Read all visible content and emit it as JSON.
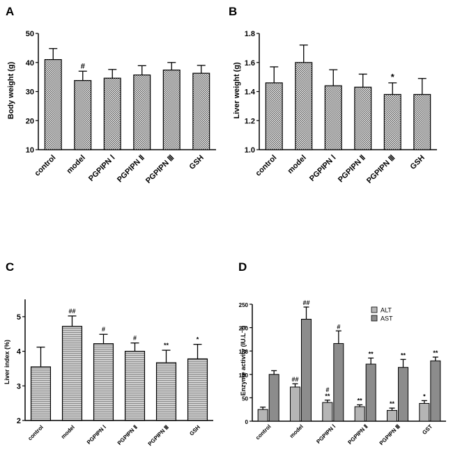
{
  "chart_data": [
    {
      "panel": "A",
      "type": "bar",
      "title": "",
      "xlabel": "",
      "ylabel": "Body weight (g)",
      "ylim": [
        10,
        50
      ],
      "yticks": [
        "10",
        "20",
        "30",
        "40",
        "50"
      ],
      "categories": [
        "control",
        "model",
        "PGPIPN Ⅰ",
        "PGPIPN Ⅱ",
        "PGPIPN Ⅲ",
        "GSH"
      ],
      "values": [
        41.0,
        33.8,
        34.6,
        35.7,
        37.4,
        36.3
      ],
      "errors": [
        3.8,
        3.2,
        3.0,
        3.2,
        2.6,
        2.7
      ],
      "annotations": [
        "",
        "#",
        "",
        "",
        "",
        ""
      ]
    },
    {
      "panel": "B",
      "type": "bar",
      "title": "",
      "xlabel": "",
      "ylabel": "Liver weight (g)",
      "ylim": [
        1.0,
        1.8
      ],
      "yticks": [
        "1.0",
        "1.2",
        "1.4",
        "1.6",
        "1.8"
      ],
      "categories": [
        "control",
        "model",
        "PGPIPN Ⅰ",
        "PGPIPN Ⅱ",
        "PGPIPN Ⅲ",
        "GSH"
      ],
      "values": [
        1.46,
        1.6,
        1.44,
        1.43,
        1.38,
        1.38
      ],
      "errors": [
        0.11,
        0.12,
        0.11,
        0.09,
        0.08,
        0.11
      ],
      "annotations": [
        "",
        "",
        "",
        "",
        "*",
        ""
      ]
    },
    {
      "panel": "C",
      "type": "bar",
      "title": "",
      "xlabel": "",
      "ylabel": "Liver index (%)",
      "ylim": [
        2,
        5.5
      ],
      "yticks": [
        "2",
        "3",
        "4",
        "5"
      ],
      "categories": [
        "control",
        "model",
        "PGPIPN Ⅰ",
        "PGPIPN Ⅱ",
        "PGPIPN Ⅲ",
        "GSH"
      ],
      "values": [
        3.55,
        4.72,
        4.22,
        4.0,
        3.67,
        3.78
      ],
      "errors": [
        0.57,
        0.3,
        0.27,
        0.24,
        0.36,
        0.42
      ],
      "annotations": [
        "",
        "##",
        "#",
        "#",
        "**",
        "*"
      ]
    },
    {
      "panel": "D",
      "type": "bar",
      "title": "",
      "xlabel": "",
      "ylabel": "Enzyme activity (IU.L⁻¹)",
      "ylim": [
        0,
        250
      ],
      "yticks": [
        "0",
        "50",
        "100",
        "150",
        "200",
        "250"
      ],
      "categories": [
        "control",
        "model",
        "PGPIPN  Ⅰ",
        "PGPIPN  Ⅱ",
        "PGPIPN Ⅲ",
        "GST"
      ],
      "legend": "top-center",
      "series": [
        {
          "name": "ALT",
          "values": [
            25,
            73,
            40,
            31,
            23,
            38
          ],
          "errors": [
            5,
            7,
            5,
            4,
            5,
            6
          ],
          "annotations": [
            "",
            "##",
            "#\n**",
            "**",
            "**",
            "*"
          ]
        },
        {
          "name": "AST",
          "values": [
            100,
            218,
            166,
            122,
            115,
            129
          ],
          "errors": [
            8,
            26,
            27,
            13,
            17,
            8
          ],
          "annotations": [
            "",
            "##",
            "#",
            "**",
            "**",
            "**"
          ]
        }
      ]
    }
  ]
}
